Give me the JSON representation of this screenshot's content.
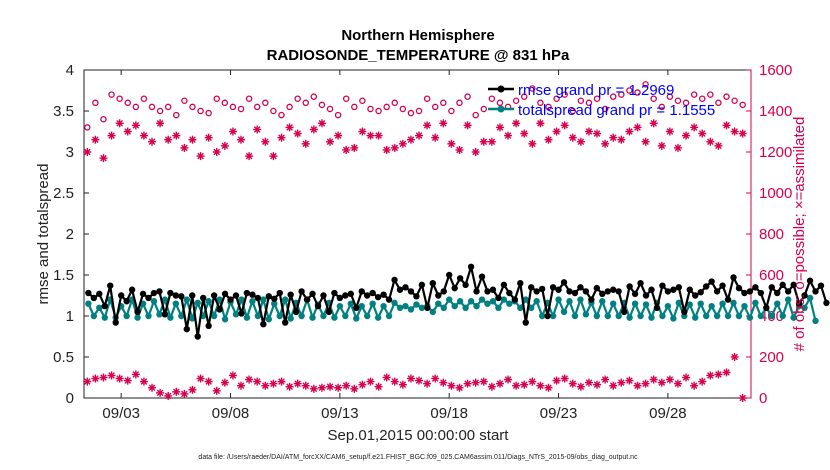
{
  "chart_data": {
    "type": "line",
    "title": "Northern Hemisphere",
    "subtitle": "RADIOSONDE_TEMPERATURE @ 831 hPa",
    "xlabel": "Sep.01,2015 00:00:00 start",
    "ylabel_left": "rmse and totalspread",
    "ylabel_right": "# of obs: o=possible; ×=assimilated",
    "ylim_left": [
      0,
      4
    ],
    "ylim_right": [
      0,
      1600
    ],
    "xlim_days": [
      1.3,
      31.8
    ],
    "yticks_left": [
      "0",
      "0.5",
      "1",
      "1.5",
      "2",
      "2.5",
      "3",
      "3.5",
      "4"
    ],
    "yticks_right": [
      "0",
      "200",
      "400",
      "600",
      "800",
      "1000",
      "1200",
      "1400",
      "1600"
    ],
    "xticks": [
      {
        "day": 3,
        "label": "09/03"
      },
      {
        "day": 8,
        "label": "09/08"
      },
      {
        "day": 13,
        "label": "09/13"
      },
      {
        "day": 18,
        "label": "09/18"
      },
      {
        "day": 23,
        "label": "09/23"
      },
      {
        "day": 28,
        "label": "09/28"
      }
    ],
    "x_start_day": 1.5,
    "x_step_days": 0.25,
    "series": [
      {
        "name": "rmse",
        "legend": "rmse grand pr = 1.2969",
        "color": "#000000",
        "axis": "left",
        "values": [
          1.28,
          1.22,
          1.27,
          1.12,
          1.37,
          0.92,
          1.25,
          1.18,
          1.32,
          1.05,
          1.27,
          1.22,
          1.28,
          1.3,
          1.02,
          1.28,
          1.25,
          1.24,
          0.84,
          1.25,
          0.75,
          1.22,
          0.88,
          1.25,
          1.08,
          1.27,
          1.2,
          1.25,
          1.03,
          1.28,
          1.26,
          1.22,
          0.9,
          1.24,
          1.21,
          1.28,
          0.92,
          1.26,
          1.05,
          1.3,
          1.2,
          1.27,
          1.12,
          1.25,
          1.05,
          1.28,
          1.22,
          1.25,
          1.27,
          1.1,
          1.3,
          1.25,
          1.28,
          1.23,
          1.26,
          1.2,
          1.44,
          1.32,
          1.35,
          1.3,
          1.24,
          1.38,
          1.1,
          1.4,
          1.25,
          1.3,
          1.5,
          1.34,
          1.46,
          1.38,
          1.6,
          1.3,
          1.48,
          1.3,
          1.32,
          1.22,
          1.38,
          1.28,
          1.2,
          1.4,
          0.92,
          1.35,
          1.3,
          1.33,
          1.0,
          1.35,
          1.32,
          1.41,
          1.3,
          1.28,
          1.35,
          1.3,
          1.2,
          1.34,
          1.27,
          1.3,
          1.32,
          1.3,
          1.05,
          1.36,
          1.27,
          1.4,
          1.25,
          1.32,
          1.1,
          1.37,
          1.3,
          1.32,
          1.35,
          1.05,
          1.32,
          1.25,
          1.29,
          1.36,
          1.42,
          1.3,
          1.37,
          1.2,
          1.47,
          1.34,
          1.28,
          1.3,
          1.35,
          1.28,
          1.1,
          1.35,
          1.28,
          1.38,
          1.3,
          1.38,
          1.15,
          1.25,
          1.43,
          1.3,
          1.37,
          1.16
        ],
        "marker": "filled-circle"
      },
      {
        "name": "totalspread",
        "legend": "totalspread grand pr = 1.1555",
        "color": "#008080",
        "axis": "left",
        "values": [
          1.15,
          1.0,
          1.1,
          0.98,
          1.2,
          0.98,
          1.12,
          1.0,
          1.2,
          0.98,
          1.15,
          1.0,
          1.18,
          1.02,
          1.2,
          0.98,
          1.15,
          1.0,
          1.2,
          0.97,
          1.16,
          1.0,
          1.18,
          1.0,
          1.2,
          0.96,
          1.17,
          1.02,
          1.2,
          0.98,
          1.18,
          1.0,
          1.2,
          0.96,
          1.15,
          1.0,
          1.2,
          0.97,
          1.16,
          1.0,
          1.2,
          0.98,
          1.14,
          1.0,
          1.16,
          0.98,
          1.12,
          1.0,
          1.15,
          0.97,
          1.12,
          1.0,
          1.15,
          0.98,
          1.12,
          1.0,
          1.16,
          1.1,
          1.12,
          1.08,
          1.14,
          1.1,
          1.12,
          1.05,
          1.15,
          1.1,
          1.2,
          1.12,
          1.18,
          1.1,
          1.18,
          1.12,
          1.2,
          1.15,
          1.18,
          1.1,
          1.2,
          1.15,
          1.18,
          1.1,
          1.2,
          1.1,
          1.18,
          1.0,
          1.16,
          1.0,
          1.2,
          1.05,
          1.18,
          1.0,
          1.2,
          1.02,
          1.16,
          1.0,
          1.18,
          1.0,
          1.15,
          1.0,
          1.16,
          0.98,
          1.15,
          1.0,
          1.14,
          0.98,
          1.16,
          1.0,
          1.12,
          0.97,
          1.16,
          1.0,
          1.14,
          0.98,
          1.15,
          1.0,
          1.12,
          1.0,
          1.15,
          1.0,
          1.16,
          1.0,
          1.12,
          0.98,
          1.16,
          1.0,
          1.1,
          1.0,
          1.15,
          1.0,
          1.2,
          0.98,
          1.12,
          1.1,
          1.22,
          0.94
        ],
        "marker": "filled-circle"
      },
      {
        "name": "obs possible",
        "color": "#d6004f",
        "axis": "right",
        "marker": "open-circle",
        "values": [
          1320,
          1440,
          1360,
          1480,
          1460,
          1440,
          1420,
          1460,
          1420,
          1400,
          1420,
          1380,
          1450,
          1420,
          1400,
          1390,
          1460,
          1440,
          1420,
          1410,
          1460,
          1420,
          1440,
          1400,
          1380,
          1420,
          1460,
          1440,
          1470,
          1430,
          1410,
          1380,
          1460,
          1420,
          1450,
          1410,
          1400,
          1420,
          1440,
          1410,
          1390,
          1400,
          1460,
          1420,
          1440,
          1400,
          1440,
          1470,
          1380,
          1410,
          1460,
          1440,
          1420,
          1450,
          1470,
          1510,
          1440,
          1420,
          1460,
          1480,
          1400,
          1450,
          1440,
          1460,
          1410,
          1470,
          1480,
          1500,
          1490,
          1530,
          1460,
          1420,
          1470,
          1450,
          1440,
          1480,
          1460,
          1480,
          1440,
          1470,
          1450,
          1430
        ],
        "x_start_day": 1.45,
        "x_step_days": 0.37
      },
      {
        "name": "obs assimilated",
        "color": "#d6004f",
        "axis": "right",
        "marker": "asterisk",
        "values": [
          1200,
          1260,
          1170,
          1280,
          1340,
          1300,
          1330,
          1280,
          1250,
          1340,
          1260,
          1280,
          1220,
          1260,
          1180,
          1270,
          1200,
          1230,
          1300,
          1260,
          1180,
          1310,
          1250,
          1180,
          1270,
          1320,
          1290,
          1240,
          1310,
          1340,
          1250,
          1280,
          1210,
          1220,
          1300,
          1280,
          1280,
          1210,
          1220,
          1240,
          1260,
          1280,
          1330,
          1270,
          1340,
          1240,
          1210,
          1330,
          1200,
          1250,
          1250,
          1320,
          1280,
          1340,
          1290,
          1240,
          1340,
          1260,
          1300,
          1330,
          1270,
          1250,
          1300,
          1290,
          1240,
          1270,
          1260,
          1300,
          1320,
          1250,
          1340,
          1230,
          1300,
          1220,
          1280,
          1320,
          1290,
          1250,
          1230,
          1330,
          1300,
          1290
        ],
        "x_start_day": 1.45,
        "x_step_days": 0.37
      },
      {
        "name": "obs assimilated (low)",
        "color": "#d6004f",
        "axis": "right",
        "marker": "asterisk",
        "values": [
          80,
          95,
          100,
          110,
          95,
          85,
          115,
          80,
          50,
          25,
          10,
          30,
          20,
          40,
          95,
          80,
          35,
          75,
          110,
          60,
          90,
          80,
          60,
          70,
          80,
          55,
          70,
          60,
          45,
          50,
          55,
          50,
          60,
          45,
          65,
          80,
          55,
          100,
          80,
          65,
          95,
          85,
          70,
          95,
          75,
          60,
          50,
          70,
          75,
          80,
          55,
          70,
          90,
          60,
          65,
          80,
          60,
          50,
          85,
          95,
          70,
          55,
          75,
          65,
          90,
          60,
          75,
          85,
          60,
          70,
          90,
          75,
          90,
          70,
          100,
          60,
          80,
          110,
          115,
          125,
          200,
          0
        ],
        "x_start_day": 1.45,
        "x_step_days": 0.37
      }
    ]
  },
  "footnote": "data file: /Users/raeder/DAI/ATM_forcXX/CAM6_setup/f.e21.FHIST_BGC.f09_025.CAM6assim.011/Diags_NTrS_2015-09/obs_diag_output.nc"
}
